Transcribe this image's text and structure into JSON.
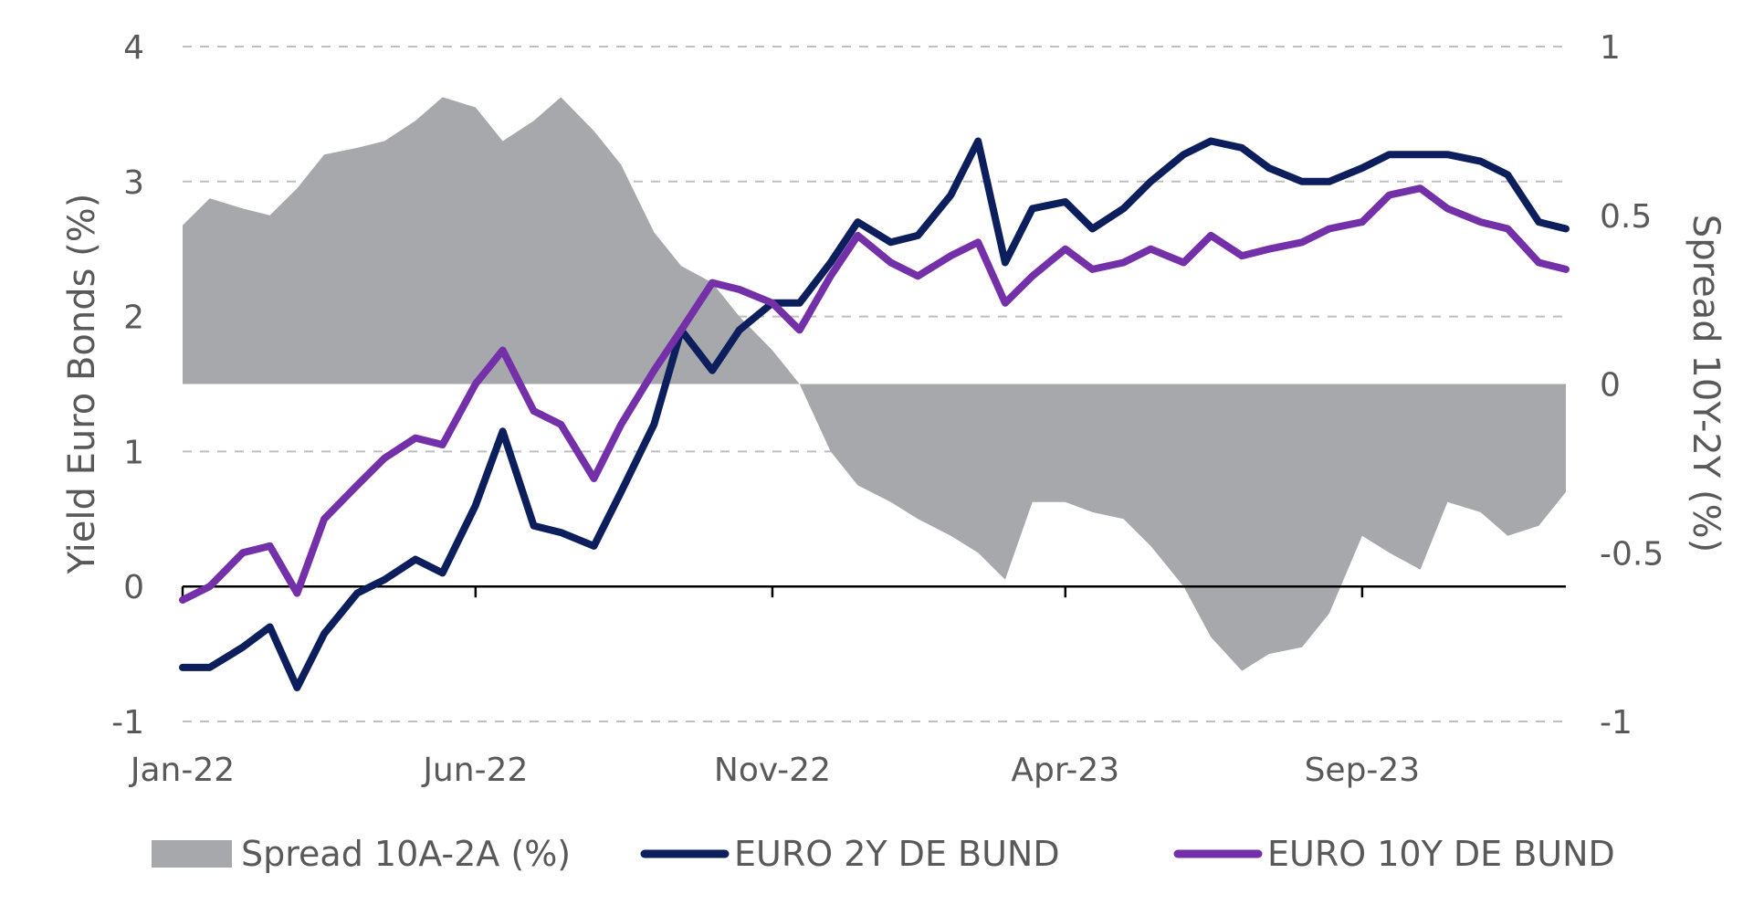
{
  "chart_data": {
    "type": "line",
    "title": "",
    "x_axis": {
      "ticks": [
        "Jan-22",
        "Jun-22",
        "Nov-22",
        "Apr-23",
        "Sep-23"
      ],
      "range": [
        "2022-01",
        "2023-12"
      ]
    },
    "y_left": {
      "label": "Yield Euro Bonds (%)",
      "ticks": [
        "4",
        "3",
        "2",
        "1",
        "0",
        "-1"
      ],
      "range": [
        -1,
        4
      ]
    },
    "y_right": {
      "label": "Spread 10Y-2Y (%)",
      "ticks": [
        "1",
        "0.5",
        "0",
        "-0.5",
        "-1"
      ],
      "range": [
        -1,
        1
      ]
    },
    "grid": "horizontal dashed",
    "legend_position": "bottom",
    "colors": {
      "spread": "#a7a8ab",
      "two_year": "#0c1e5c",
      "ten_year": "#7330a8",
      "grid": "#bfbfbf",
      "axis": "#000000",
      "text": "#595959"
    },
    "series": [
      {
        "name": "Spread 10A-2A (%)",
        "type": "area",
        "axis": "right",
        "x": [
          "2022-01-01",
          "2022-01-15",
          "2022-02-01",
          "2022-02-15",
          "2022-03-01",
          "2022-03-15",
          "2022-04-01",
          "2022-04-15",
          "2022-05-01",
          "2022-05-15",
          "2022-06-01",
          "2022-06-15",
          "2022-07-01",
          "2022-07-15",
          "2022-08-01",
          "2022-08-15",
          "2022-09-01",
          "2022-09-15",
          "2022-10-01",
          "2022-10-15",
          "2022-11-01",
          "2022-11-15",
          "2022-12-01",
          "2022-12-15",
          "2023-01-01",
          "2023-01-15",
          "2023-02-01",
          "2023-02-15",
          "2023-03-01",
          "2023-03-15",
          "2023-04-01",
          "2023-04-15",
          "2023-05-01",
          "2023-05-15",
          "2023-06-01",
          "2023-06-15",
          "2023-07-01",
          "2023-07-15",
          "2023-08-01",
          "2023-08-15",
          "2023-09-01",
          "2023-09-15",
          "2023-10-01",
          "2023-10-15",
          "2023-11-01",
          "2023-11-15",
          "2023-12-01",
          "2023-12-15"
        ],
        "values": [
          0.47,
          0.55,
          0.52,
          0.5,
          0.58,
          0.68,
          0.7,
          0.72,
          0.78,
          0.85,
          0.82,
          0.72,
          0.78,
          0.85,
          0.75,
          0.65,
          0.45,
          0.35,
          0.3,
          0.2,
          0.1,
          0.0,
          -0.2,
          -0.3,
          -0.35,
          -0.4,
          -0.45,
          -0.5,
          -0.58,
          -0.35,
          -0.35,
          -0.38,
          -0.4,
          -0.48,
          -0.6,
          -0.75,
          -0.85,
          -0.8,
          -0.78,
          -0.68,
          -0.45,
          -0.5,
          -0.55,
          -0.35,
          -0.38,
          -0.45,
          -0.42,
          -0.32
        ]
      },
      {
        "name": "EURO 2Y DE BUND",
        "type": "line",
        "axis": "left",
        "x": [
          "2022-01-01",
          "2022-01-15",
          "2022-02-01",
          "2022-02-15",
          "2022-03-01",
          "2022-03-15",
          "2022-04-01",
          "2022-04-15",
          "2022-05-01",
          "2022-05-15",
          "2022-06-01",
          "2022-06-15",
          "2022-07-01",
          "2022-07-15",
          "2022-08-01",
          "2022-08-15",
          "2022-09-01",
          "2022-09-15",
          "2022-10-01",
          "2022-10-15",
          "2022-11-01",
          "2022-11-15",
          "2022-12-01",
          "2022-12-15",
          "2023-01-01",
          "2023-01-15",
          "2023-02-01",
          "2023-02-15",
          "2023-03-01",
          "2023-03-15",
          "2023-04-01",
          "2023-04-15",
          "2023-05-01",
          "2023-05-15",
          "2023-06-01",
          "2023-06-15",
          "2023-07-01",
          "2023-07-15",
          "2023-08-01",
          "2023-08-15",
          "2023-09-01",
          "2023-09-15",
          "2023-10-01",
          "2023-10-15",
          "2023-11-01",
          "2023-11-15",
          "2023-12-01",
          "2023-12-15"
        ],
        "values": [
          -0.6,
          -0.6,
          -0.45,
          -0.3,
          -0.75,
          -0.35,
          -0.05,
          0.05,
          0.2,
          0.1,
          0.6,
          1.15,
          0.45,
          0.4,
          0.3,
          0.7,
          1.2,
          1.9,
          1.6,
          1.9,
          2.1,
          2.1,
          2.4,
          2.7,
          2.55,
          2.6,
          2.9,
          3.3,
          2.4,
          2.8,
          2.85,
          2.65,
          2.8,
          3.0,
          3.2,
          3.3,
          3.25,
          3.1,
          3.0,
          3.0,
          3.1,
          3.2,
          3.2,
          3.2,
          3.15,
          3.05,
          2.7,
          2.65
        ]
      },
      {
        "name": "EURO 10Y DE BUND",
        "type": "line",
        "axis": "left",
        "x": [
          "2022-01-01",
          "2022-01-15",
          "2022-02-01",
          "2022-02-15",
          "2022-03-01",
          "2022-03-15",
          "2022-04-01",
          "2022-04-15",
          "2022-05-01",
          "2022-05-15",
          "2022-06-01",
          "2022-06-15",
          "2022-07-01",
          "2022-07-15",
          "2022-08-01",
          "2022-08-15",
          "2022-09-01",
          "2022-09-15",
          "2022-10-01",
          "2022-10-15",
          "2022-11-01",
          "2022-11-15",
          "2022-12-01",
          "2022-12-15",
          "2023-01-01",
          "2023-01-15",
          "2023-02-01",
          "2023-02-15",
          "2023-03-01",
          "2023-03-15",
          "2023-04-01",
          "2023-04-15",
          "2023-05-01",
          "2023-05-15",
          "2023-06-01",
          "2023-06-15",
          "2023-07-01",
          "2023-07-15",
          "2023-08-01",
          "2023-08-15",
          "2023-09-01",
          "2023-09-15",
          "2023-10-01",
          "2023-10-15",
          "2023-11-01",
          "2023-11-15",
          "2023-12-01",
          "2023-12-15"
        ],
        "values": [
          -0.1,
          0.0,
          0.25,
          0.3,
          -0.05,
          0.5,
          0.75,
          0.95,
          1.1,
          1.05,
          1.5,
          1.75,
          1.3,
          1.2,
          0.8,
          1.2,
          1.6,
          1.9,
          2.25,
          2.2,
          2.1,
          1.9,
          2.3,
          2.6,
          2.4,
          2.3,
          2.45,
          2.55,
          2.1,
          2.3,
          2.5,
          2.35,
          2.4,
          2.5,
          2.4,
          2.6,
          2.45,
          2.5,
          2.55,
          2.65,
          2.7,
          2.9,
          2.95,
          2.8,
          2.7,
          2.65,
          2.4,
          2.35
        ]
      }
    ],
    "legend": [
      {
        "label": "Spread 10A-2A (%)",
        "swatch": "area"
      },
      {
        "label": "EURO 2Y DE BUND",
        "swatch": "line"
      },
      {
        "label": "EURO 10Y DE BUND",
        "swatch": "line"
      }
    ]
  }
}
